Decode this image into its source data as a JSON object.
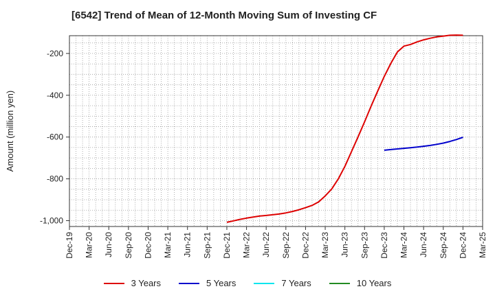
{
  "title": "[6542]  Trend of Mean of 12-Month Moving Sum of Investing CF",
  "chart_data": {
    "type": "line",
    "title": "[6542]  Trend of Mean of 12-Month Moving Sum of Investing CF",
    "xlabel": "",
    "ylabel": "Amount (million yen)",
    "x_ticks": [
      "Dec-19",
      "Mar-20",
      "Jun-20",
      "Sep-20",
      "Dec-20",
      "Mar-21",
      "Jun-21",
      "Sep-21",
      "Dec-21",
      "Mar-22",
      "Jun-22",
      "Sep-22",
      "Dec-22",
      "Mar-23",
      "Jun-23",
      "Sep-23",
      "Dec-23",
      "Mar-24",
      "Jun-24",
      "Sep-24",
      "Dec-24",
      "Mar-25"
    ],
    "y_ticks": [
      -1000,
      -800,
      -600,
      -400,
      -200
    ],
    "y_tick_labels": [
      "-1,000",
      "-800",
      "-600",
      "-400",
      "-200"
    ],
    "ylim": [
      -1028,
      -115
    ],
    "grid": true,
    "legend_position": "bottom",
    "series": [
      {
        "name": "3 Years",
        "color": "#dd0000",
        "x": [
          "2021-12",
          "2022-01",
          "2022-02",
          "2022-03",
          "2022-04",
          "2022-05",
          "2022-06",
          "2022-07",
          "2022-08",
          "2022-09",
          "2022-10",
          "2022-11",
          "2022-12",
          "2023-01",
          "2023-02",
          "2023-03",
          "2023-04",
          "2023-05",
          "2023-06",
          "2023-07",
          "2023-08",
          "2023-09",
          "2023-10",
          "2023-11",
          "2023-12",
          "2024-01",
          "2024-02",
          "2024-03",
          "2024-04",
          "2024-05",
          "2024-06",
          "2024-07",
          "2024-08",
          "2024-09",
          "2024-10",
          "2024-11",
          "2024-12"
        ],
        "values": [
          -1008,
          -1001,
          -994,
          -988,
          -983,
          -978,
          -975,
          -972,
          -968,
          -963,
          -956,
          -948,
          -938,
          -927,
          -910,
          -882,
          -848,
          -800,
          -740,
          -670,
          -600,
          -527,
          -452,
          -380,
          -310,
          -248,
          -193,
          -165,
          -157,
          -145,
          -135,
          -127,
          -121,
          -117,
          -113,
          -112,
          -113
        ]
      },
      {
        "name": "5 Years",
        "color": "#0000cc",
        "x": [
          "2023-12",
          "2024-01",
          "2024-02",
          "2024-03",
          "2024-04",
          "2024-05",
          "2024-06",
          "2024-07",
          "2024-08",
          "2024-09",
          "2024-10",
          "2024-11",
          "2024-12"
        ],
        "values": [
          -663,
          -660,
          -657,
          -654,
          -651,
          -648,
          -644,
          -640,
          -635,
          -629,
          -621,
          -612,
          -601
        ]
      },
      {
        "name": "7 Years",
        "color": "#00e5ee",
        "x": [],
        "values": []
      },
      {
        "name": "10 Years",
        "color": "#228b22",
        "x": [],
        "values": []
      }
    ]
  }
}
